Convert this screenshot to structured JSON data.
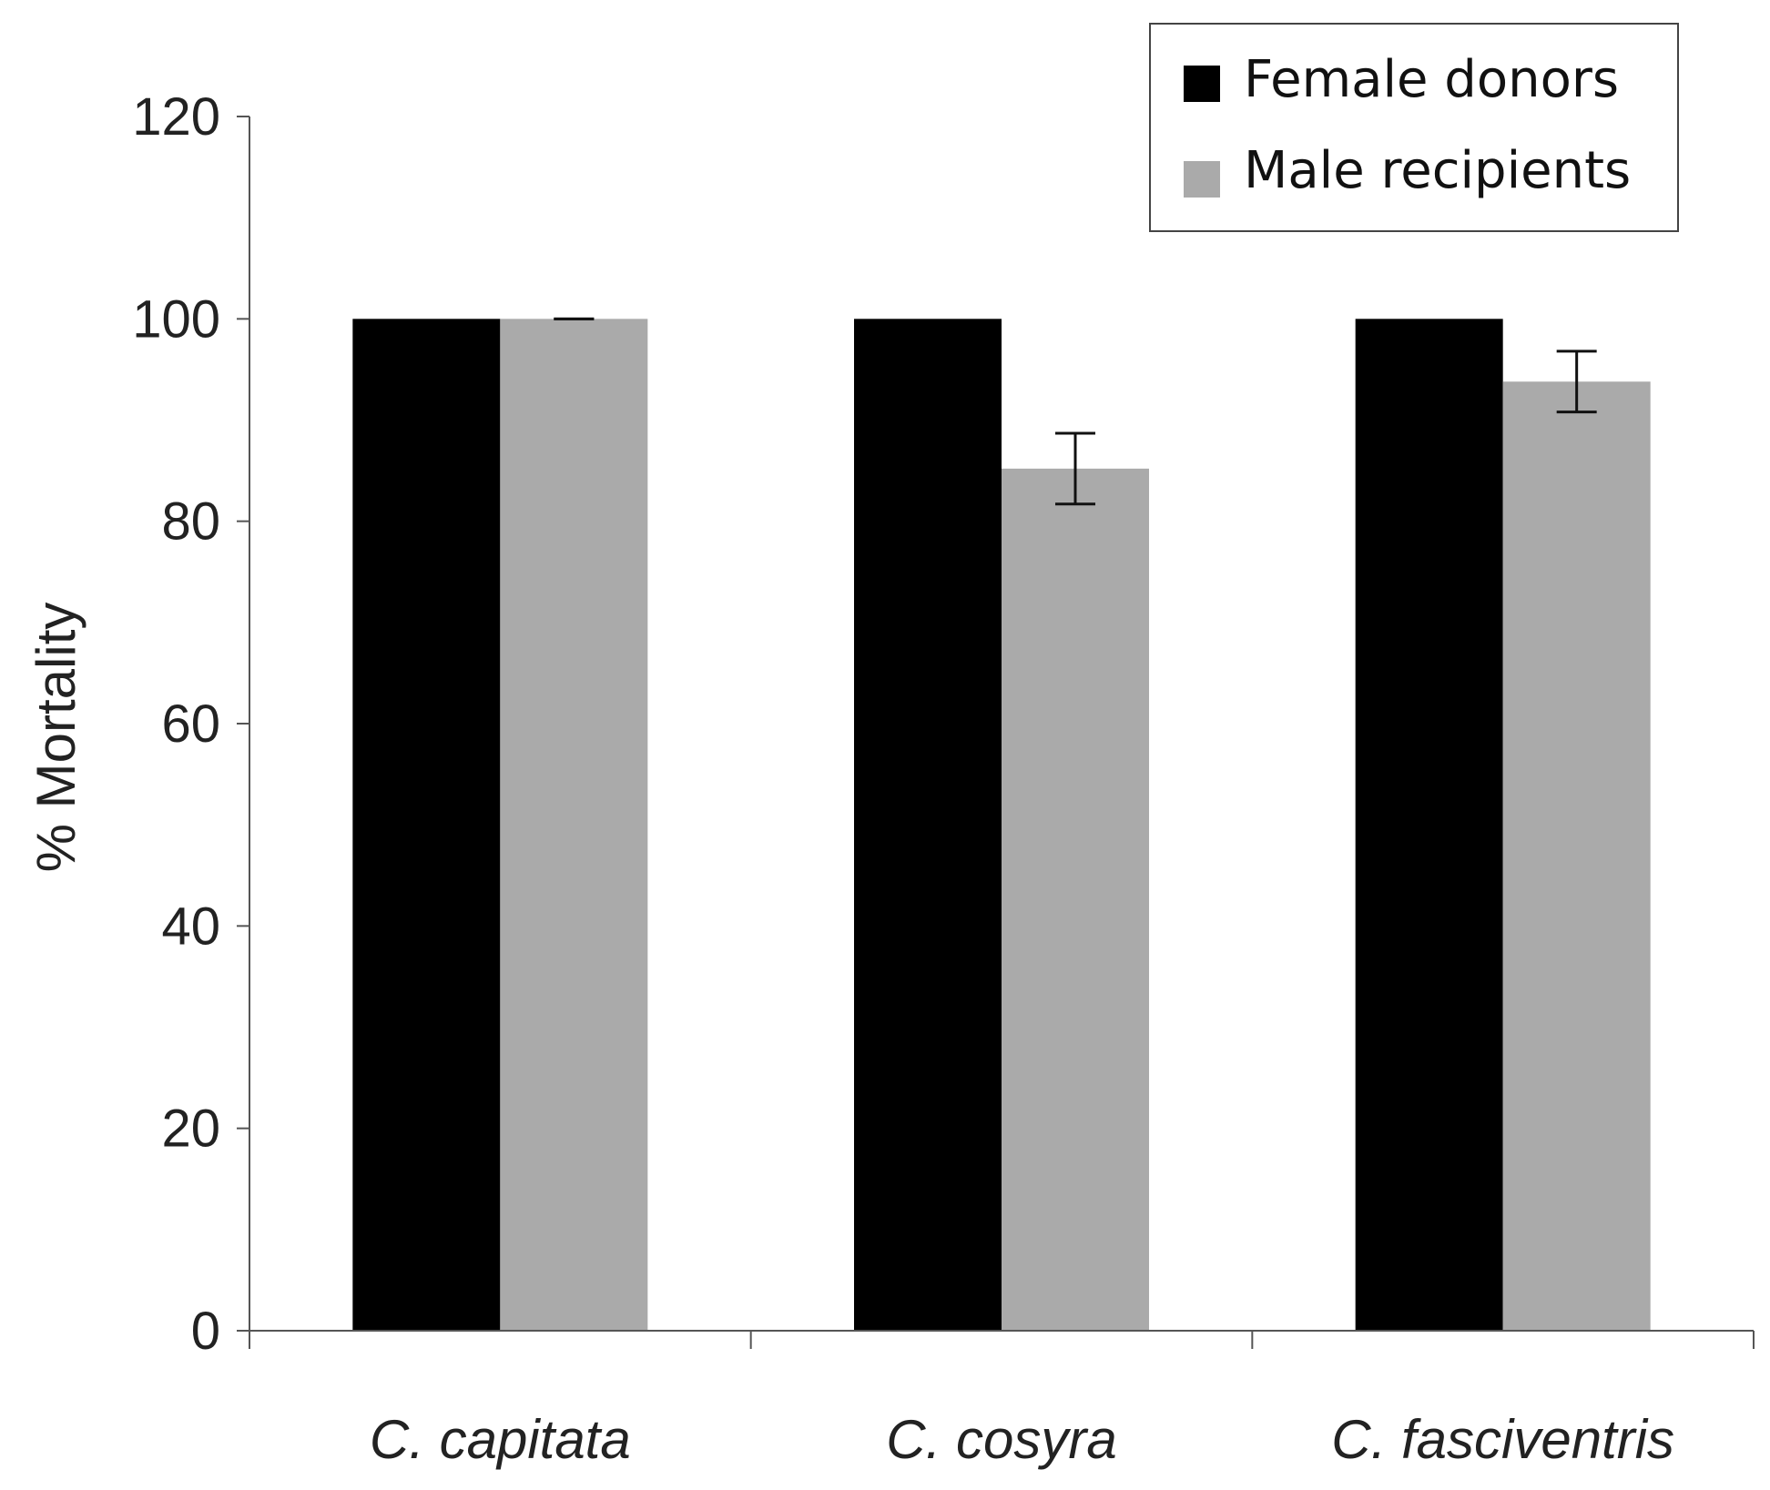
{
  "chart_data": {
    "type": "bar",
    "categories": [
      "C. capitata",
      "C. cosyra",
      "C. fasciventris"
    ],
    "series": [
      {
        "name": "Female donors",
        "color": "#000000",
        "values": [
          100,
          100,
          100
        ],
        "errors": [
          0,
          0,
          0
        ]
      },
      {
        "name": "Male recipients",
        "color": "#aaaaaa",
        "values": [
          100,
          85.2,
          93.8
        ],
        "errors": [
          0,
          3.5,
          3.0
        ]
      }
    ],
    "xlabel": "",
    "ylabel": "% Mortality",
    "ylim": [
      0,
      120
    ],
    "yticks": [
      0,
      20,
      40,
      60,
      80,
      100,
      120
    ],
    "grid": false,
    "legend_position": "top-right"
  }
}
